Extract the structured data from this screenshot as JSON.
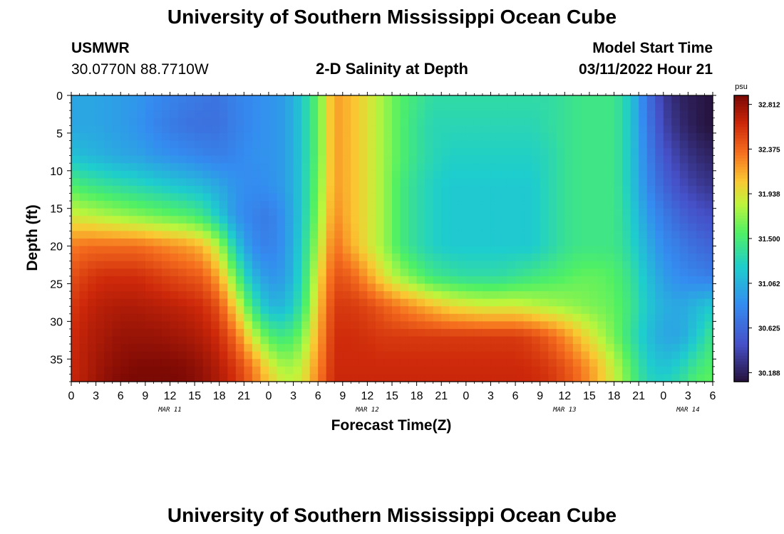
{
  "page": {
    "title_top": "University of Southern Mississippi Ocean Cube",
    "title_bottom": "University of Southern Mississippi Ocean Cube",
    "station": "USMWR",
    "coords": "30.0770N  88.7710W",
    "plot_title": "2-D Salinity at Depth",
    "model_start_label": "Model Start Time",
    "model_start_value": "03/11/2022 Hour 21"
  },
  "chart_data": {
    "type": "heatmap",
    "title": "2-D Salinity at Depth",
    "xlabel": "Forecast Time(Z)",
    "ylabel": "Depth (ft)",
    "x_ticks": [
      "0",
      "3",
      "6",
      "9",
      "12",
      "15",
      "18",
      "21",
      "0",
      "3",
      "6",
      "9",
      "12",
      "15",
      "18",
      "21",
      "0",
      "3",
      "6",
      "9",
      "12",
      "15",
      "18",
      "21",
      "0",
      "3",
      "6"
    ],
    "date_labels": [
      {
        "label": "MAR 11",
        "hour": 12
      },
      {
        "label": "MAR 12",
        "hour": 36
      },
      {
        "label": "MAR 13",
        "hour": 60
      },
      {
        "label": "MAR 14",
        "hour": 75
      }
    ],
    "xlim": [
      0,
      78
    ],
    "y_ticks": [
      0,
      5,
      10,
      15,
      20,
      25,
      30,
      35
    ],
    "ylim": [
      0,
      38
    ],
    "y_reversed": true,
    "colorbar": {
      "unit": "psu",
      "range": [
        30.1,
        32.9
      ],
      "ticks": [
        "32.812",
        "32.375",
        "31.938",
        "31.500",
        "31.062",
        "30.625",
        "30.188"
      ]
    },
    "grid_x_hours": [
      0,
      2,
      4,
      6,
      8,
      10,
      12,
      14,
      16,
      18,
      20,
      22,
      24,
      26,
      28,
      30,
      32,
      34,
      36,
      38,
      40,
      42,
      44,
      46,
      48,
      50,
      52,
      54,
      56,
      58,
      60,
      62,
      64,
      66,
      68,
      70,
      72,
      74,
      76,
      78
    ],
    "grid_y_depths": [
      0,
      4,
      8,
      12,
      16,
      20,
      24,
      28,
      32,
      36,
      38
    ],
    "values": [
      [
        31.0,
        31.0,
        30.98,
        30.95,
        30.92,
        30.85,
        30.8,
        30.75,
        30.72,
        30.7,
        30.8,
        30.85,
        30.9,
        30.95,
        31.2,
        31.6,
        32.2,
        32.1,
        31.95,
        31.75,
        31.55,
        31.45,
        31.35,
        31.35,
        31.35,
        31.35,
        31.35,
        31.35,
        31.35,
        31.35,
        31.4,
        31.45,
        31.45,
        31.45,
        31.2,
        30.7,
        30.35,
        30.2,
        30.15,
        30.1
      ],
      [
        31.0,
        31.0,
        30.98,
        30.95,
        30.9,
        30.82,
        30.75,
        30.7,
        30.68,
        30.68,
        30.78,
        30.85,
        30.9,
        30.95,
        31.2,
        31.6,
        32.2,
        32.1,
        31.95,
        31.75,
        31.55,
        31.4,
        31.3,
        31.3,
        31.3,
        31.3,
        31.3,
        31.3,
        31.3,
        31.35,
        31.4,
        31.45,
        31.45,
        31.45,
        31.2,
        30.75,
        30.4,
        30.25,
        30.15,
        30.1
      ],
      [
        31.15,
        31.1,
        31.05,
        31.0,
        30.98,
        30.92,
        30.88,
        30.85,
        30.8,
        30.78,
        30.82,
        30.88,
        30.9,
        30.95,
        31.2,
        31.6,
        32.2,
        32.1,
        31.95,
        31.75,
        31.55,
        31.4,
        31.3,
        31.25,
        31.25,
        31.25,
        31.25,
        31.25,
        31.25,
        31.3,
        31.4,
        31.45,
        31.45,
        31.45,
        31.2,
        30.8,
        30.5,
        30.35,
        30.25,
        30.2
      ],
      [
        31.55,
        31.45,
        31.4,
        31.35,
        31.3,
        31.25,
        31.2,
        31.15,
        31.1,
        31.0,
        30.9,
        30.85,
        30.88,
        30.95,
        31.2,
        31.65,
        32.2,
        32.1,
        31.95,
        31.75,
        31.5,
        31.35,
        31.25,
        31.2,
        31.2,
        31.2,
        31.2,
        31.2,
        31.2,
        31.3,
        31.4,
        31.45,
        31.45,
        31.45,
        31.2,
        30.85,
        30.6,
        30.45,
        30.35,
        30.3
      ],
      [
        31.9,
        31.85,
        31.8,
        31.75,
        31.7,
        31.65,
        31.6,
        31.55,
        31.45,
        31.2,
        30.9,
        30.8,
        30.75,
        30.9,
        31.2,
        31.7,
        32.25,
        32.1,
        31.95,
        31.75,
        31.5,
        31.35,
        31.25,
        31.2,
        31.2,
        31.2,
        31.2,
        31.2,
        31.2,
        31.3,
        31.4,
        31.45,
        31.45,
        31.45,
        31.25,
        30.95,
        30.75,
        30.6,
        30.5,
        30.45
      ],
      [
        32.3,
        32.35,
        32.35,
        32.35,
        32.35,
        32.3,
        32.25,
        32.2,
        32.1,
        31.8,
        31.2,
        30.85,
        30.78,
        30.9,
        31.25,
        31.8,
        32.35,
        32.15,
        31.95,
        31.75,
        31.5,
        31.35,
        31.25,
        31.2,
        31.2,
        31.2,
        31.2,
        31.2,
        31.2,
        31.3,
        31.4,
        31.45,
        31.45,
        31.45,
        31.3,
        31.05,
        30.85,
        30.75,
        30.65,
        30.6
      ],
      [
        32.45,
        32.55,
        32.6,
        32.6,
        32.6,
        32.55,
        32.5,
        32.45,
        32.4,
        32.15,
        31.6,
        31.1,
        30.9,
        30.95,
        31.3,
        31.95,
        32.45,
        32.4,
        32.2,
        31.95,
        31.75,
        31.6,
        31.45,
        31.4,
        31.35,
        31.35,
        31.35,
        31.4,
        31.45,
        31.5,
        31.55,
        31.6,
        31.6,
        31.55,
        31.4,
        31.15,
        30.95,
        30.85,
        30.8,
        30.75
      ],
      [
        32.55,
        32.65,
        32.7,
        32.72,
        32.72,
        32.7,
        32.68,
        32.65,
        32.6,
        32.45,
        32.0,
        31.45,
        31.1,
        31.1,
        31.4,
        32.05,
        32.55,
        32.55,
        32.5,
        32.4,
        32.3,
        32.2,
        32.1,
        32.0,
        31.95,
        31.9,
        31.9,
        31.9,
        31.85,
        31.8,
        31.75,
        31.7,
        31.65,
        31.6,
        31.45,
        31.2,
        31.05,
        31.0,
        31.1,
        31.2
      ],
      [
        32.6,
        32.7,
        32.75,
        32.8,
        32.8,
        32.8,
        32.78,
        32.75,
        32.7,
        32.6,
        32.35,
        31.9,
        31.55,
        31.45,
        31.65,
        32.15,
        32.6,
        32.6,
        32.58,
        32.55,
        32.55,
        32.55,
        32.55,
        32.55,
        32.55,
        32.55,
        32.55,
        32.55,
        32.5,
        32.4,
        32.25,
        32.05,
        31.85,
        31.65,
        31.4,
        31.15,
        31.0,
        31.0,
        31.2,
        31.45
      ],
      [
        32.62,
        32.72,
        32.8,
        32.85,
        32.88,
        32.88,
        32.88,
        32.86,
        32.8,
        32.7,
        32.55,
        32.3,
        31.95,
        31.75,
        31.85,
        32.25,
        32.62,
        32.62,
        32.62,
        32.62,
        32.62,
        32.62,
        32.62,
        32.62,
        32.62,
        32.62,
        32.62,
        32.62,
        32.6,
        32.55,
        32.45,
        32.3,
        32.1,
        31.85,
        31.55,
        31.25,
        31.15,
        31.25,
        31.45,
        31.55
      ],
      [
        32.63,
        32.73,
        32.82,
        32.88,
        32.9,
        32.9,
        32.9,
        32.88,
        32.82,
        32.72,
        32.58,
        32.35,
        32.05,
        31.85,
        31.9,
        32.3,
        32.63,
        32.63,
        32.63,
        32.63,
        32.63,
        32.63,
        32.63,
        32.63,
        32.63,
        32.63,
        32.63,
        32.63,
        32.62,
        32.58,
        32.48,
        32.33,
        32.12,
        31.88,
        31.58,
        31.3,
        31.25,
        31.35,
        31.55,
        31.6
      ]
    ]
  }
}
